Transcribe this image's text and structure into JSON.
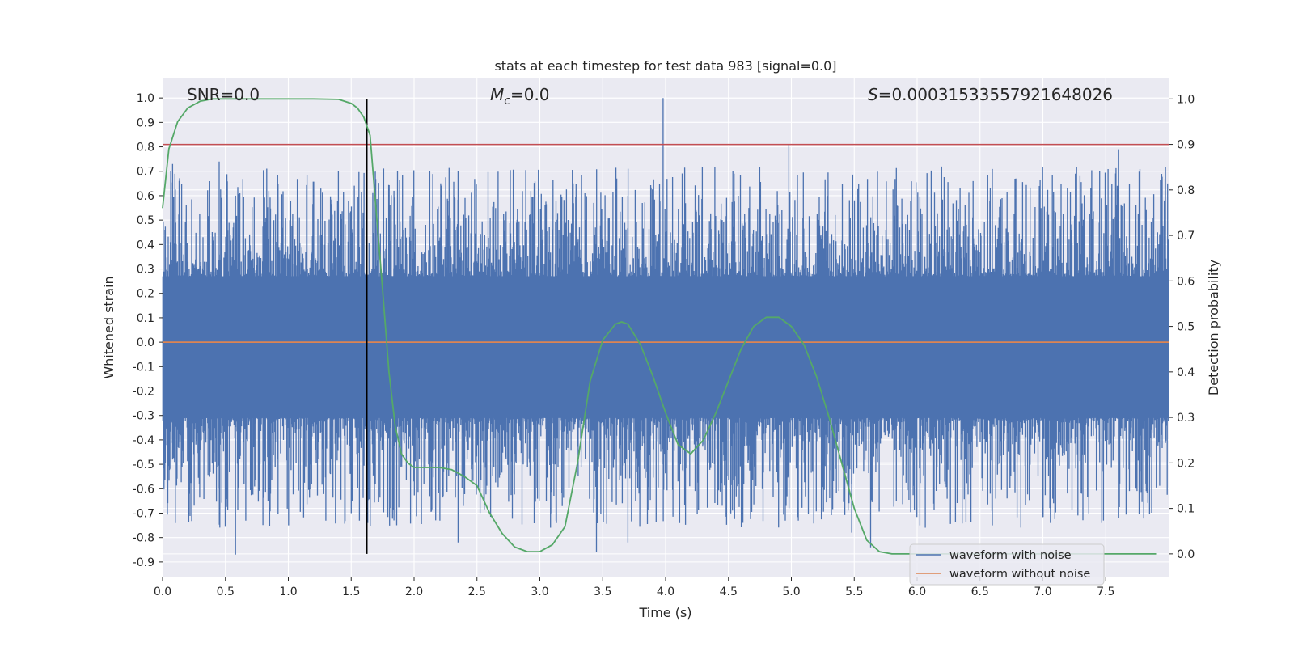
{
  "chart_data": {
    "type": "line",
    "title": "stats at each timestep for test data 983 [signal=0.0]",
    "xlabel": "Time (s)",
    "ylabel": "Whitened strain",
    "ylabel_right": "Detection probability",
    "xlim": [
      0.0,
      8.0
    ],
    "ylim": [
      -0.96,
      1.08
    ],
    "ylim_right": [
      -0.05,
      1.045
    ],
    "xticks": [
      "0.0",
      "0.5",
      "1.0",
      "1.5",
      "2.0",
      "2.5",
      "3.0",
      "3.5",
      "4.0",
      "4.5",
      "5.0",
      "5.5",
      "6.0",
      "6.5",
      "7.0",
      "7.5"
    ],
    "yticks": [
      "1.0",
      "0.9",
      "0.8",
      "0.7",
      "0.6",
      "0.5",
      "0.4",
      "0.3",
      "0.2",
      "0.1",
      "0.0",
      "-0.1",
      "-0.2",
      "-0.3",
      "-0.4",
      "-0.5",
      "-0.6",
      "-0.7",
      "-0.8",
      "-0.9"
    ],
    "yticks_right": [
      "1.0",
      "0.9",
      "0.8",
      "0.7",
      "0.6",
      "0.5",
      "0.4",
      "0.3",
      "0.2",
      "0.1",
      "0.0"
    ],
    "annotations": {
      "snr": "SNR=0.0",
      "mc_symbol": "M",
      "mc_sub": "c",
      "mc_value": "=0.0",
      "s_symbol": "S",
      "s_value": "=0.00031533557921648026"
    },
    "series": [
      {
        "name": "waveform with noise",
        "color": "#4c72b0",
        "band_typical": [
          -0.31,
          0.27
        ],
        "spike_range": [
          -0.87,
          1.0
        ]
      },
      {
        "name": "waveform without noise",
        "color": "#dd8452",
        "values_constant": 0.0
      },
      {
        "name": "Detection probability",
        "color": "#55a868",
        "axis": "right",
        "x": [
          0.0,
          0.05,
          0.12,
          0.2,
          0.3,
          0.4,
          0.6,
          0.8,
          1.0,
          1.2,
          1.4,
          1.5,
          1.55,
          1.6,
          1.65,
          1.7,
          1.75,
          1.8,
          1.85,
          1.9,
          1.95,
          2.0,
          2.05,
          2.1,
          2.2,
          2.3,
          2.4,
          2.5,
          2.6,
          2.7,
          2.8,
          2.9,
          3.0,
          3.1,
          3.2,
          3.3,
          3.4,
          3.5,
          3.6,
          3.65,
          3.7,
          3.8,
          3.9,
          4.0,
          4.1,
          4.2,
          4.3,
          4.4,
          4.5,
          4.6,
          4.7,
          4.8,
          4.9,
          5.0,
          5.1,
          5.2,
          5.3,
          5.4,
          5.5,
          5.6,
          5.7,
          5.8,
          5.9,
          6.0,
          6.5,
          7.0,
          7.5,
          7.9
        ],
        "y": [
          0.76,
          0.89,
          0.95,
          0.98,
          0.995,
          1.0,
          1.0,
          1.0,
          1.0,
          1.0,
          0.999,
          0.99,
          0.98,
          0.96,
          0.92,
          0.75,
          0.58,
          0.4,
          0.28,
          0.22,
          0.2,
          0.19,
          0.19,
          0.19,
          0.19,
          0.185,
          0.17,
          0.15,
          0.09,
          0.045,
          0.015,
          0.005,
          0.005,
          0.02,
          0.06,
          0.2,
          0.38,
          0.47,
          0.505,
          0.51,
          0.505,
          0.46,
          0.39,
          0.31,
          0.24,
          0.22,
          0.25,
          0.31,
          0.38,
          0.45,
          0.5,
          0.52,
          0.52,
          0.5,
          0.46,
          0.39,
          0.3,
          0.2,
          0.1,
          0.03,
          0.005,
          0.0,
          0.0,
          0.0,
          0.0,
          0.0,
          0.0,
          0.0
        ]
      }
    ],
    "threshold_right": 0.9,
    "threshold_color": "#c44e52",
    "marker_time": 1.625
  },
  "legend": {
    "noise": "waveform with noise",
    "clean": "waveform without noise"
  }
}
